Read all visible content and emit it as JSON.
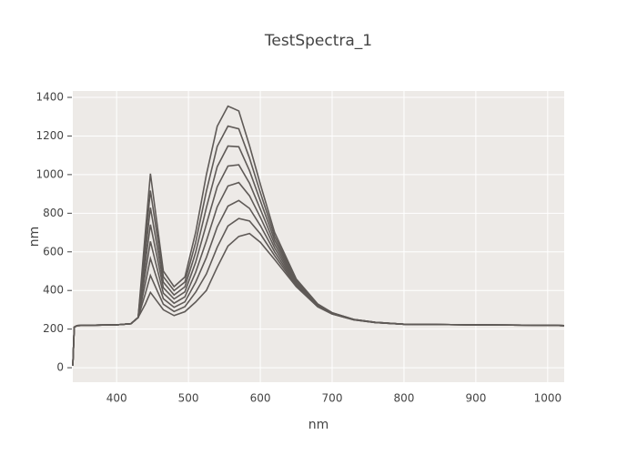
{
  "chart_data": {
    "type": "line",
    "title": "TestSpectra_1",
    "x_label": "nm",
    "y_label": "nm",
    "color": "#5f5a57",
    "grid": true,
    "xlim": [
      339,
      1023
    ],
    "ylim": [
      -75,
      1433
    ],
    "xticks": [
      400,
      500,
      600,
      700,
      800,
      900,
      1000
    ],
    "yticks": [
      0,
      200,
      400,
      600,
      800,
      1000,
      1200,
      1400
    ],
    "x": [
      339,
      341,
      345,
      360,
      380,
      400,
      420,
      430,
      440,
      447,
      455,
      465,
      480,
      495,
      510,
      525,
      540,
      555,
      570,
      585,
      600,
      620,
      650,
      680,
      700,
      730,
      760,
      800,
      900,
      1000,
      1023
    ],
    "series": [
      {
        "values": [
          10,
          210,
          218,
          220,
          221,
          222,
          228,
          260,
          700,
          1005,
          780,
          500,
          420,
          470,
          700,
          1000,
          1250,
          1355,
          1330,
          1150,
          950,
          700,
          460,
          330,
          285,
          250,
          235,
          225,
          222,
          220,
          218
        ]
      },
      {
        "values": [
          10,
          210,
          218,
          220,
          221,
          222,
          228,
          260,
          647,
          917,
          719,
          471,
          399,
          444,
          649,
          914,
          1146,
          1251,
          1237,
          1085,
          907,
          680,
          454,
          328,
          284,
          250,
          235,
          225,
          222,
          220,
          218
        ]
      },
      {
        "values": [
          10,
          210,
          218,
          220,
          221,
          222,
          228,
          260,
          594,
          829,
          657,
          443,
          377,
          419,
          597,
          829,
          1041,
          1148,
          1144,
          1020,
          864,
          660,
          449,
          326,
          283,
          250,
          235,
          225,
          222,
          220,
          218
        ]
      },
      {
        "values": [
          10,
          210,
          218,
          220,
          221,
          222,
          228,
          260,
          541,
          741,
          596,
          414,
          356,
          393,
          546,
          743,
          937,
          1044,
          1051,
          955,
          821,
          640,
          443,
          324,
          282,
          249,
          235,
          225,
          222,
          220,
          218
        ]
      },
      {
        "values": [
          10,
          210,
          218,
          220,
          221,
          222,
          228,
          260,
          489,
          654,
          534,
          386,
          334,
          367,
          494,
          657,
          833,
          941,
          959,
          890,
          779,
          620,
          437,
          321,
          281,
          249,
          234,
          225,
          222,
          220,
          218
        ]
      },
      {
        "values": [
          10,
          210,
          218,
          220,
          221,
          222,
          228,
          260,
          436,
          566,
          473,
          357,
          313,
          341,
          443,
          571,
          729,
          837,
          866,
          825,
          736,
          600,
          431,
          319,
          280,
          249,
          234,
          225,
          222,
          220,
          218
        ]
      },
      {
        "values": [
          10,
          210,
          218,
          220,
          221,
          222,
          228,
          260,
          383,
          478,
          411,
          329,
          291,
          316,
          391,
          486,
          624,
          734,
          773,
          760,
          693,
          580,
          426,
          317,
          279,
          248,
          234,
          225,
          222,
          220,
          218
        ]
      },
      {
        "values": [
          10,
          210,
          218,
          220,
          221,
          222,
          228,
          260,
          330,
          390,
          350,
          300,
          270,
          290,
          340,
          400,
          520,
          630,
          680,
          695,
          650,
          560,
          420,
          315,
          278,
          248,
          234,
          225,
          222,
          220,
          218
        ]
      }
    ]
  }
}
